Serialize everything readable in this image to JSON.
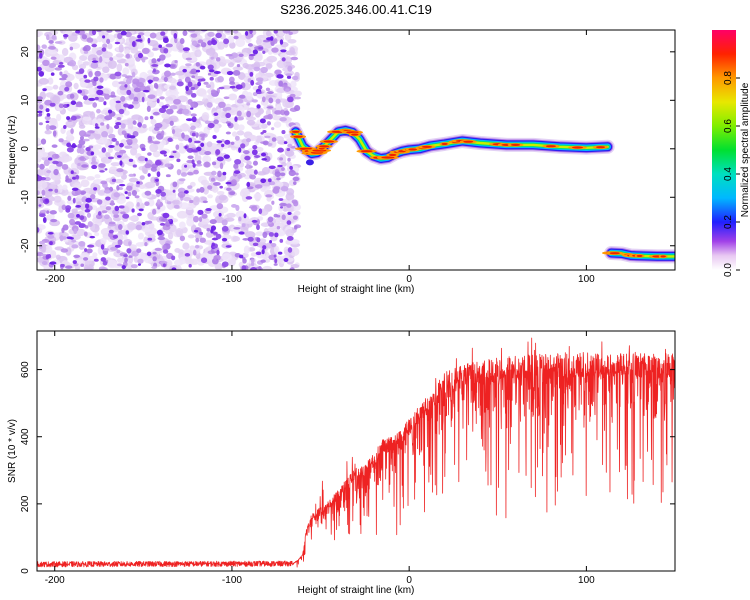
{
  "title": "S236.2025.346.00.41.C19",
  "chart_data": [
    {
      "type": "heatmap",
      "name": "spectrogram",
      "xlabel": "Height of straight line (km)",
      "ylabel": "Frequency (Hz)",
      "xlim": [
        -210,
        150
      ],
      "ylim": [
        -25,
        24.5
      ],
      "xticks": [
        -200,
        -100,
        0,
        100
      ],
      "xtick_labels": [
        "-200",
        "-100",
        "0",
        "100"
      ],
      "yticks": [
        -20,
        -10,
        0,
        10,
        20
      ],
      "ytick_labels": [
        "-20",
        "-10",
        "0",
        "10",
        "20"
      ],
      "noise_region_x": [
        -210,
        -64
      ],
      "ridge": {
        "x": [
          -64,
          -60,
          -55,
          -52,
          -48,
          -44,
          -40,
          -36,
          -32,
          -28,
          -24,
          -20,
          -16,
          -12,
          -8,
          -4,
          0,
          6,
          12,
          20,
          30,
          40,
          55,
          70,
          85,
          100,
          112
        ],
        "y": [
          3.5,
          0.5,
          -1.0,
          -0.8,
          0.5,
          2.0,
          3.5,
          3.8,
          3.4,
          2.0,
          -0.5,
          -1.5,
          -2.0,
          -1.8,
          -1.0,
          -0.5,
          -0.2,
          0.0,
          0.6,
          1.0,
          1.6,
          1.2,
          0.8,
          0.8,
          0.4,
          0.2,
          0.4
        ]
      },
      "ridge_tail": {
        "x": [
          114,
          120,
          125,
          130,
          140,
          150
        ],
        "y": [
          -21.5,
          -21.6,
          -22.0,
          -22.1,
          -22.2,
          -22.2
        ]
      },
      "colorbar": {
        "label": "Normalized spectral amplitude",
        "range": [
          0,
          1
        ],
        "ticks": [
          0.0,
          0.2,
          0.4,
          0.6,
          0.8
        ],
        "tick_labels": [
          "0.0",
          "0.2",
          "0.4",
          "0.6",
          "0.8"
        ]
      }
    },
    {
      "type": "line",
      "name": "snr",
      "xlabel": "Height of straight line (km)",
      "ylabel": "SNR (10 * v/v)",
      "xlim": [
        -210,
        150
      ],
      "ylim": [
        0,
        715
      ],
      "xticks": [
        -200,
        -100,
        0,
        100
      ],
      "xtick_labels": [
        "-200",
        "-100",
        "0",
        "100"
      ],
      "yticks": [
        0,
        200,
        400,
        600
      ],
      "ytick_labels": [
        "0",
        "200",
        "400",
        "600"
      ],
      "series": [
        {
          "name": "SNR",
          "color": "#ee2222",
          "envelope": {
            "x": [
              -210,
              -66,
              -63,
              -60,
              -58,
              -55,
              -50,
              -45,
              -40,
              -35,
              -30,
              -25,
              -20,
              -15,
              -10,
              -5,
              0,
              5,
              10,
              15,
              20,
              25,
              30,
              40,
              50,
              60,
              70,
              80,
              90,
              100,
              110,
              120,
              130,
              140,
              150
            ],
            "y": [
              20,
              22,
              30,
              50,
              120,
              160,
              180,
              200,
              230,
              260,
              290,
              300,
              330,
              370,
              380,
              400,
              430,
              460,
              490,
              520,
              560,
              570,
              580,
              590,
              600,
              605,
              610,
              615,
              615,
              615,
              610,
              615,
              615,
              610,
              615
            ]
          }
        }
      ]
    }
  ]
}
